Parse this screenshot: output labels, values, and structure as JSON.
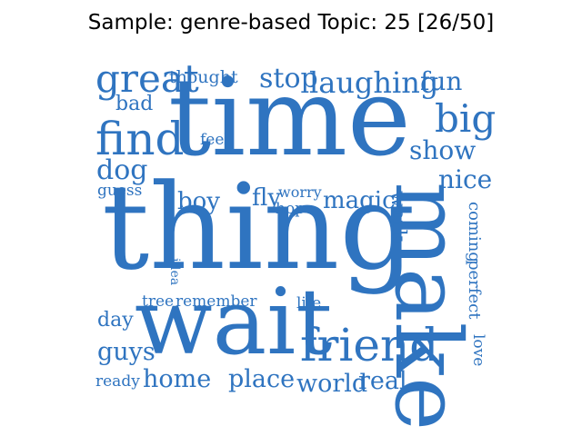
{
  "title": "Sample: genre-based Topic: 25 [26/50]",
  "word_color": "#2f74c0",
  "words": [
    "time",
    "thing",
    "wait",
    "make",
    "friend",
    "find",
    "great",
    "big",
    "laughing",
    "stop",
    "fun",
    "thought",
    "bad",
    "feel",
    "show",
    "dog",
    "nice",
    "guess",
    "boy",
    "fly",
    "worry",
    "hope",
    "magic",
    "work",
    "coming",
    "idea",
    "perfect",
    "tree",
    "remember",
    "life",
    "day",
    "guys",
    "love",
    "ready",
    "home",
    "place",
    "world",
    "real"
  ]
}
